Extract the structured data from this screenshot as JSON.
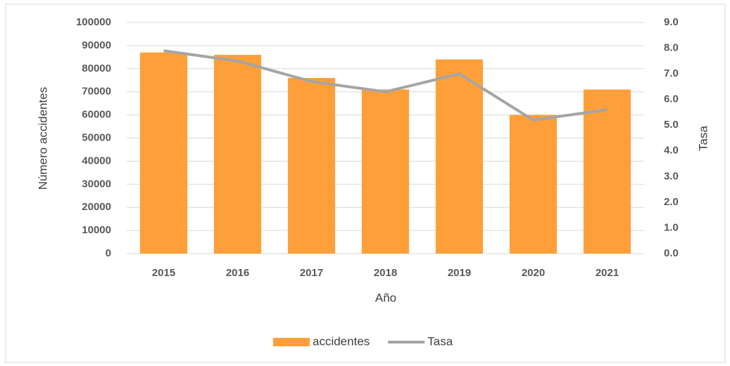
{
  "chart_data": {
    "type": "bar",
    "categories": [
      "2015",
      "2016",
      "2017",
      "2018",
      "2019",
      "2020",
      "2021"
    ],
    "series": [
      {
        "name": "accidentes",
        "color": "#FF9F3A",
        "values": [
          87000,
          86000,
          76000,
          71000,
          84000,
          60000,
          71000
        ]
      },
      {
        "name": "Tasa",
        "color": "#A5A5A5",
        "type": "line",
        "axis": "y2",
        "values": [
          7.9,
          7.5,
          6.7,
          6.3,
          7.0,
          5.2,
          5.6
        ]
      }
    ],
    "xlabel": "Año",
    "ylabel": "Número accidentes",
    "y2label": "Tasa",
    "ylim": [
      0,
      100000
    ],
    "yticks": [
      0,
      10000,
      20000,
      30000,
      40000,
      50000,
      60000,
      70000,
      80000,
      90000,
      100000
    ],
    "y2lim": [
      0,
      9
    ],
    "y2ticks": [
      {
        "value": 0,
        "label": "0.0"
      },
      {
        "value": 1,
        "label": "1.0"
      },
      {
        "value": 2,
        "label": "2.0"
      },
      {
        "value": 3,
        "label": "3.0"
      },
      {
        "value": 4,
        "label": "4.0"
      },
      {
        "value": 5,
        "label": "5.0"
      },
      {
        "value": 6,
        "label": "6.0"
      },
      {
        "value": 7,
        "label": "7.0"
      },
      {
        "value": 8,
        "label": "8.0"
      },
      {
        "value": 9,
        "label": "9.0"
      }
    ],
    "grid": true,
    "legend": "bottom"
  }
}
